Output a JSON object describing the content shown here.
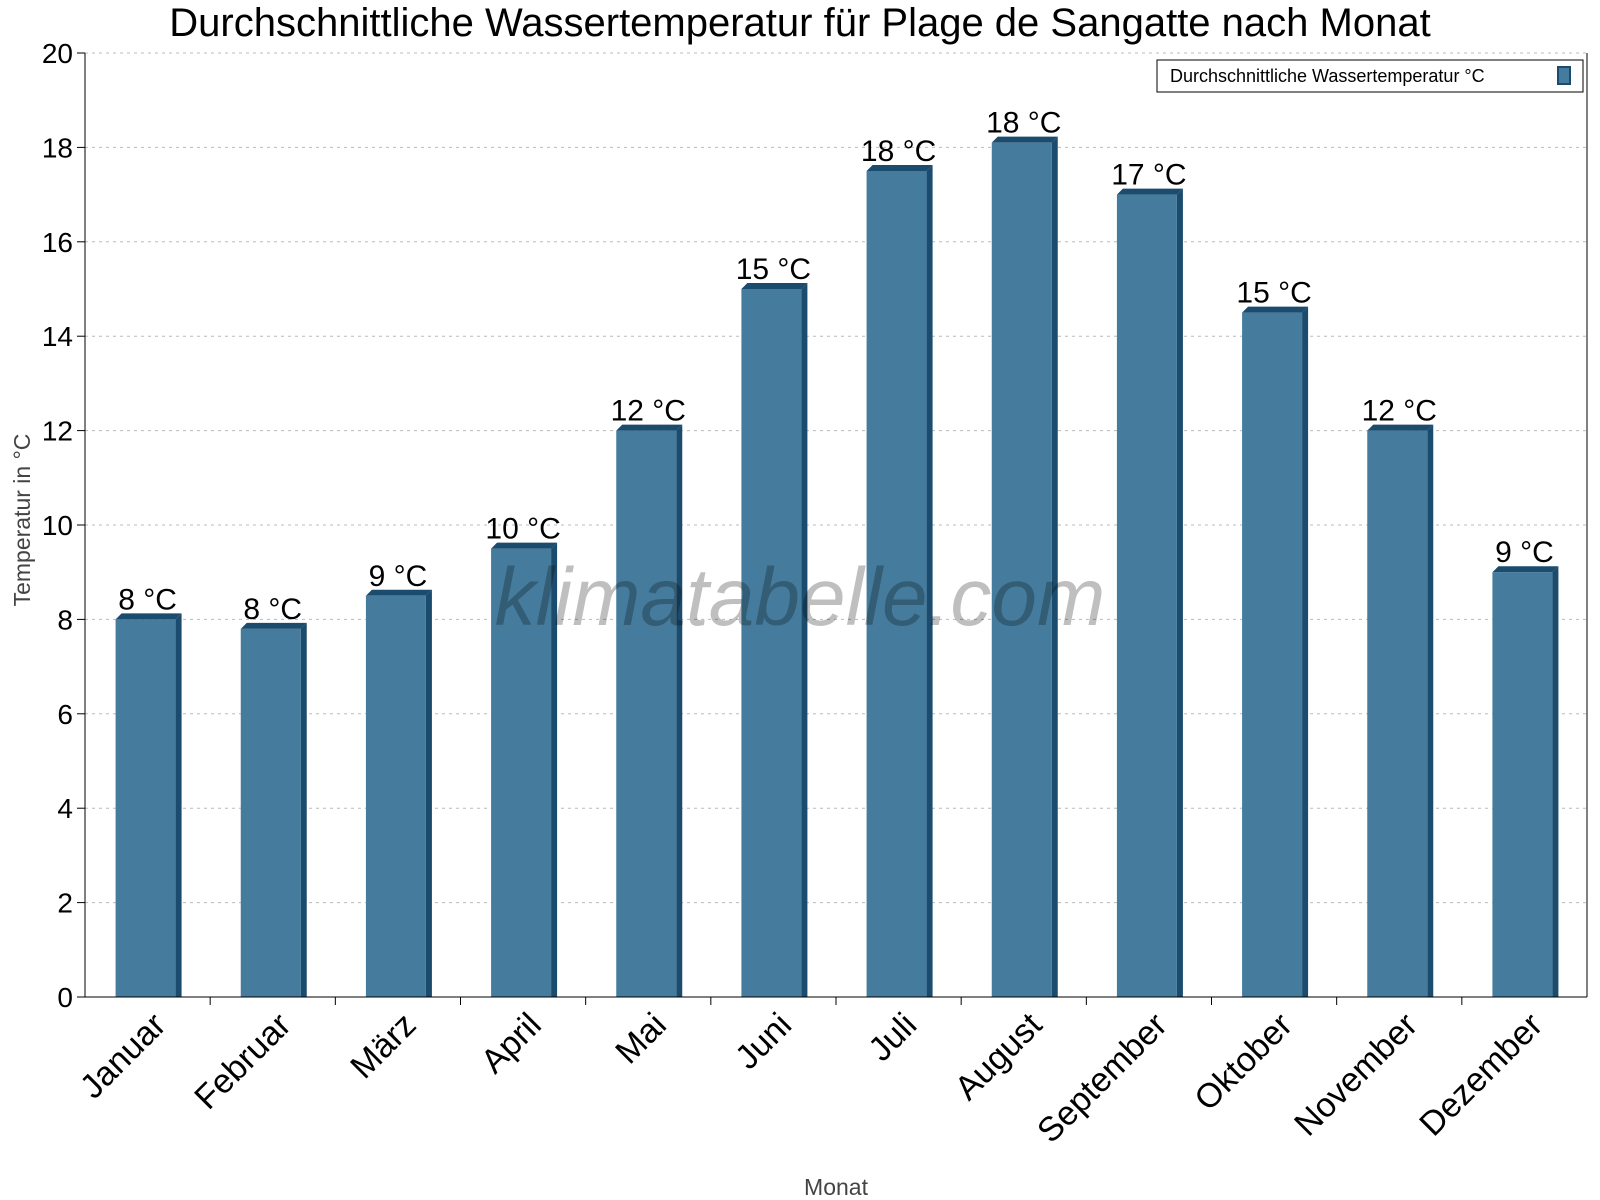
{
  "chart_data": {
    "type": "bar",
    "title": "Durchschnittliche Wassertemperatur für Plage de Sangatte nach Monat",
    "xlabel": "Monat",
    "ylabel": "Temperatur in °C",
    "ylim": [
      0,
      20
    ],
    "yticks": [
      0,
      2,
      4,
      6,
      8,
      10,
      12,
      14,
      16,
      18,
      20
    ],
    "grid": true,
    "legend_position": "top-right",
    "categories": [
      "Januar",
      "Februar",
      "März",
      "April",
      "Mai",
      "Juni",
      "Juli",
      "August",
      "September",
      "Oktober",
      "November",
      "Dezember"
    ],
    "series": [
      {
        "name": "Durchschnittliche Wassertemperatur °C",
        "values": [
          8.0,
          7.8,
          8.5,
          9.5,
          12.0,
          15.0,
          17.5,
          18.1,
          17.0,
          14.5,
          12.0,
          9.0
        ],
        "data_labels": [
          "8 °C",
          "8 °C",
          "9 °C",
          "10 °C",
          "12 °C",
          "15 °C",
          "18 °C",
          "18 °C",
          "17 °C",
          "15 °C",
          "12 °C",
          "9 °C"
        ],
        "color": "#457b9d",
        "shade_color": "#1b4b6d"
      }
    ],
    "watermark": "klimatabelle.com"
  }
}
